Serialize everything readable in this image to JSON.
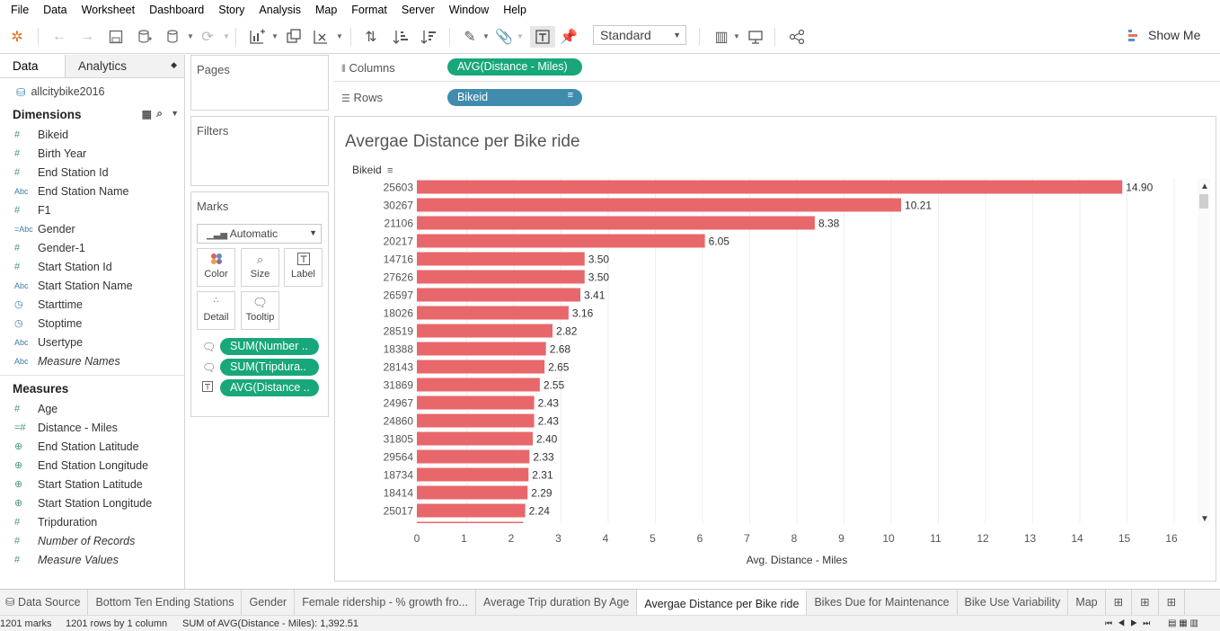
{
  "menu": [
    "File",
    "Data",
    "Worksheet",
    "Dashboard",
    "Story",
    "Analysis",
    "Map",
    "Format",
    "Server",
    "Window",
    "Help"
  ],
  "toolbar": {
    "standard_label": "Standard",
    "show_me_label": "Show Me"
  },
  "left": {
    "data_tab": "Data",
    "analytics_tab": "Analytics",
    "datasource": "allcitybike2016",
    "dimensions_header": "Dimensions",
    "dimensions": [
      {
        "icon": "#",
        "label": "Bikeid",
        "italic": false
      },
      {
        "icon": "#",
        "label": "Birth Year",
        "italic": false
      },
      {
        "icon": "#",
        "label": "End Station Id",
        "italic": false
      },
      {
        "icon": "Abc",
        "label": "End Station Name",
        "italic": false
      },
      {
        "icon": "#",
        "label": "F1",
        "italic": false
      },
      {
        "icon": "=Abc",
        "label": "Gender",
        "italic": false
      },
      {
        "icon": "#",
        "label": "Gender-1",
        "italic": false
      },
      {
        "icon": "#",
        "label": "Start Station Id",
        "italic": false
      },
      {
        "icon": "Abc",
        "label": "Start Station Name",
        "italic": false
      },
      {
        "icon": "time",
        "label": "Starttime",
        "italic": false
      },
      {
        "icon": "time",
        "label": "Stoptime",
        "italic": false
      },
      {
        "icon": "Abc",
        "label": "Usertype",
        "italic": false
      },
      {
        "icon": "Abc",
        "label": "Measure Names",
        "italic": true
      }
    ],
    "measures_header": "Measures",
    "measures": [
      {
        "icon": "#",
        "label": "Age",
        "italic": false
      },
      {
        "icon": "=#",
        "label": "Distance - Miles",
        "italic": false
      },
      {
        "icon": "globe",
        "label": "End Station Latitude",
        "italic": false
      },
      {
        "icon": "globe",
        "label": "End Station Longitude",
        "italic": false
      },
      {
        "icon": "globe",
        "label": "Start Station Latitude",
        "italic": false
      },
      {
        "icon": "globe",
        "label": "Start Station Longitude",
        "italic": false
      },
      {
        "icon": "#",
        "label": "Tripduration",
        "italic": false
      },
      {
        "icon": "#",
        "label": "Number of Records",
        "italic": true
      },
      {
        "icon": "#",
        "label": "Measure Values",
        "italic": true
      }
    ]
  },
  "cards": {
    "pages": "Pages",
    "filters": "Filters",
    "marks": "Marks",
    "mark_type": "Automatic",
    "buttons": [
      "Color",
      "Size",
      "Label",
      "Detail",
      "Tooltip"
    ],
    "pills": [
      "SUM(Number ..",
      "SUM(Tripdura..",
      "AVG(Distance .."
    ]
  },
  "shelves": {
    "columns_label": "Columns",
    "columns_pill": "AVG(Distance - Miles)",
    "rows_label": "Rows",
    "rows_pill": "Bikeid"
  },
  "chart_data": {
    "type": "bar",
    "orientation": "horizontal",
    "title": "Avergae Distance per Bike ride",
    "row_header": "Bikeid",
    "xlabel": "Avg. Distance - Miles",
    "xlim": [
      0,
      16
    ],
    "xticks": [
      0,
      1,
      2,
      3,
      4,
      5,
      6,
      7,
      8,
      9,
      10,
      11,
      12,
      13,
      14,
      15,
      16
    ],
    "bar_color": "#e8676b",
    "categories": [
      "25603",
      "30267",
      "21106",
      "20217",
      "14716",
      "27626",
      "26597",
      "18026",
      "28519",
      "18388",
      "28143",
      "31869",
      "24967",
      "24860",
      "31805",
      "29564",
      "18734",
      "18414",
      "25017"
    ],
    "values": [
      14.9,
      10.21,
      8.38,
      6.05,
      3.5,
      3.5,
      3.41,
      3.16,
      2.82,
      2.68,
      2.65,
      2.55,
      2.43,
      2.43,
      2.4,
      2.33,
      2.31,
      2.29,
      2.24
    ],
    "labels": [
      "14.90",
      "10.21",
      "8.38",
      "6.05",
      "3.50",
      "3.50",
      "3.41",
      "3.16",
      "2.82",
      "2.68",
      "2.65",
      "2.55",
      "2.43",
      "2.43",
      "2.40",
      "2.33",
      "2.31",
      "2.29",
      "2.24"
    ],
    "grid": true
  },
  "sheet_tabs": [
    "Data Source",
    "Bottom Ten Ending Stations",
    "Gender",
    "Female ridership - % growth fro...",
    "Average Trip duration By Age",
    "Avergae Distance per Bike ride",
    "Bikes Due for Maintenance",
    "Bike Use Variability",
    "Map"
  ],
  "active_tab": "Avergae Distance per Bike ride",
  "status": {
    "marks": "1201 marks",
    "rows": "1201 rows by 1 column",
    "sum": "SUM of AVG(Distance - Miles): 1,392.51"
  },
  "colors": {
    "green_pill": "#18a77a",
    "blue_pill": "#3f8cae",
    "bar": "#e8676b"
  }
}
